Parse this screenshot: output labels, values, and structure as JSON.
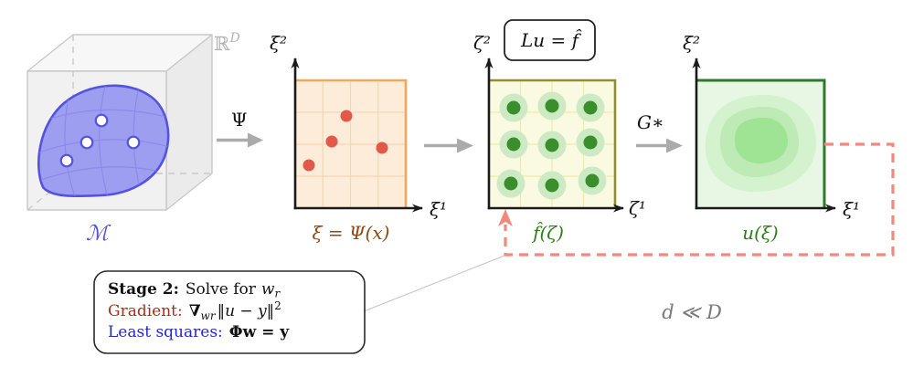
{
  "colors": {
    "cube_edge": "#c9c9c9",
    "cube_face": "#f1f1f1",
    "cube_face_top": "#f7f7f7",
    "cube_face_right": "#ebebeb",
    "manifold_fill": "#9e9ef0",
    "manifold_stroke": "#5353e0",
    "manifold_grid": "#8686ea",
    "manifold_label": "#5050dd",
    "ambient_label": "#b3b3b3",
    "arrow_gray": "#ababab",
    "axis": "#1a1a1a",
    "latent_fill": "#fcecd9",
    "latent_border": "#f0a85c",
    "latent_grid": "#f2d7b4",
    "latent_dot": "#e4584b",
    "latent_caption": "#8b4a10",
    "source_fill": "#fafae3",
    "source_border": "#8f8f2e",
    "source_grid": "#ececa8",
    "source_halo": "#cdeac5",
    "source_dot": "#3a8f2c",
    "green_text": "#2e7d1a",
    "solution_fill": "#e7f7e3",
    "solution_border": "#2d7a2d",
    "solution_rings": [
      "#d5f2cf",
      "#beebb5",
      "#9fe494"
    ],
    "feedback": "#f18a7e",
    "gradient_label": "#a33119",
    "ls_label": "#2626cf",
    "dim_note": "#7a7a7a"
  },
  "cube": {
    "ambient_base": "ℝ",
    "ambient_sup": "D",
    "manifold_label": "ℳ",
    "sample_points": [
      [
        111,
        132
      ],
      [
        95,
        156
      ],
      [
        146,
        156
      ],
      [
        73,
        176
      ]
    ]
  },
  "maps": {
    "psi": "Ψ",
    "gstar": "G∗"
  },
  "latent_panel": {
    "axis_y": "ξ²",
    "axis_x": "ξ¹",
    "caption": "ξ = Ψ(x)",
    "dots": [
      [
        379,
        127
      ],
      [
        363,
        155
      ],
      [
        418,
        162
      ],
      [
        338,
        181
      ]
    ]
  },
  "source_panel": {
    "axis_y": "ζ²",
    "axis_x": "ζ¹",
    "caption": "f̂(ζ)",
    "pde_box": "Lu = f̂",
    "dots": [
      [
        562,
        118
      ],
      [
        604,
        116
      ],
      [
        646,
        118
      ],
      [
        562,
        158
      ],
      [
        604,
        159
      ],
      [
        646,
        156
      ],
      [
        559,
        201
      ],
      [
        604,
        203
      ],
      [
        648,
        198
      ]
    ]
  },
  "solution_panel": {
    "axis_y": "ξ²",
    "axis_x": "ξ¹",
    "caption": "u(ξ)"
  },
  "dim_note": "d ≪ D",
  "stage2": {
    "title_label": "Stage 2:",
    "title_text": "Solve for",
    "title_var": "w",
    "title_var_sub": "r",
    "gradient_label": "Gradient:",
    "grad_nabla": "∇",
    "grad_sub": "wr",
    "grad_norm": "‖u − y‖",
    "grad_sup": "2",
    "ls_label": "Least squares:",
    "ls_formula": "Φw = y"
  }
}
